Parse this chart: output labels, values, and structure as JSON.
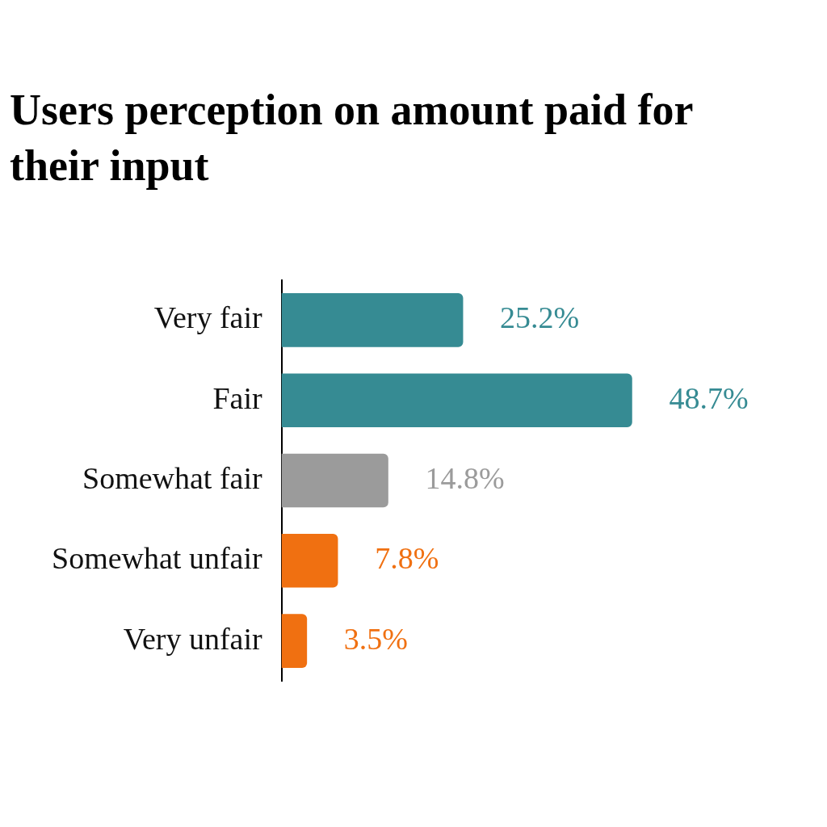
{
  "chart_data": {
    "type": "bar",
    "orientation": "horizontal",
    "title": "Users perception on amount paid for their input",
    "categories": [
      "Very fair",
      "Fair",
      "Somewhat fair",
      "Somewhat unfair",
      "Very unfair"
    ],
    "values": [
      25.2,
      48.7,
      14.8,
      7.8,
      3.5
    ],
    "colors": [
      "#368b93",
      "#368b93",
      "#9b9b9b",
      "#f07011",
      "#f07011"
    ],
    "value_labels": [
      "25.2%",
      "48.7%",
      "14.8%",
      "7.8%",
      "3.5%"
    ]
  }
}
